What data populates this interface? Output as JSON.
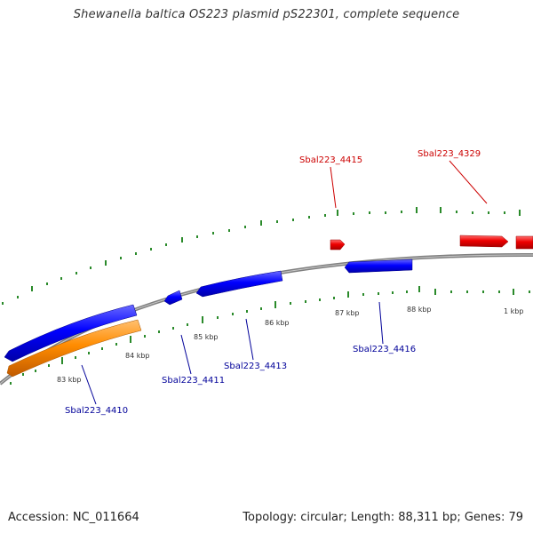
{
  "title": "Shewanella baltica OS223 plasmid pS22301, complete sequence",
  "footer": {
    "accession_label": "Accession: NC_011664",
    "topology_label": "Topology: circular; Length: 88,311 bp; Genes: 79"
  },
  "colors": {
    "forward_gene": "#e00000",
    "reverse_gene": "#0000ff",
    "other_gene": "#ff8000",
    "backbone": "#888888",
    "ticks": "#2a8a2a",
    "forward_label": "#cc0000",
    "reverse_label": "#000099"
  },
  "ticks": {
    "inner_labels": [
      "83 kbp",
      "84 kbp",
      "85 kbp",
      "86 kbp",
      "87 kbp",
      "88 kbp",
      "1 kbp"
    ]
  },
  "gene_labels": {
    "forward": [
      "Sbal223_4415",
      "Sbal223_4329"
    ],
    "reverse": [
      "Sbal223_4410",
      "Sbal223_4411",
      "Sbal223_4413",
      "Sbal223_4416"
    ]
  }
}
